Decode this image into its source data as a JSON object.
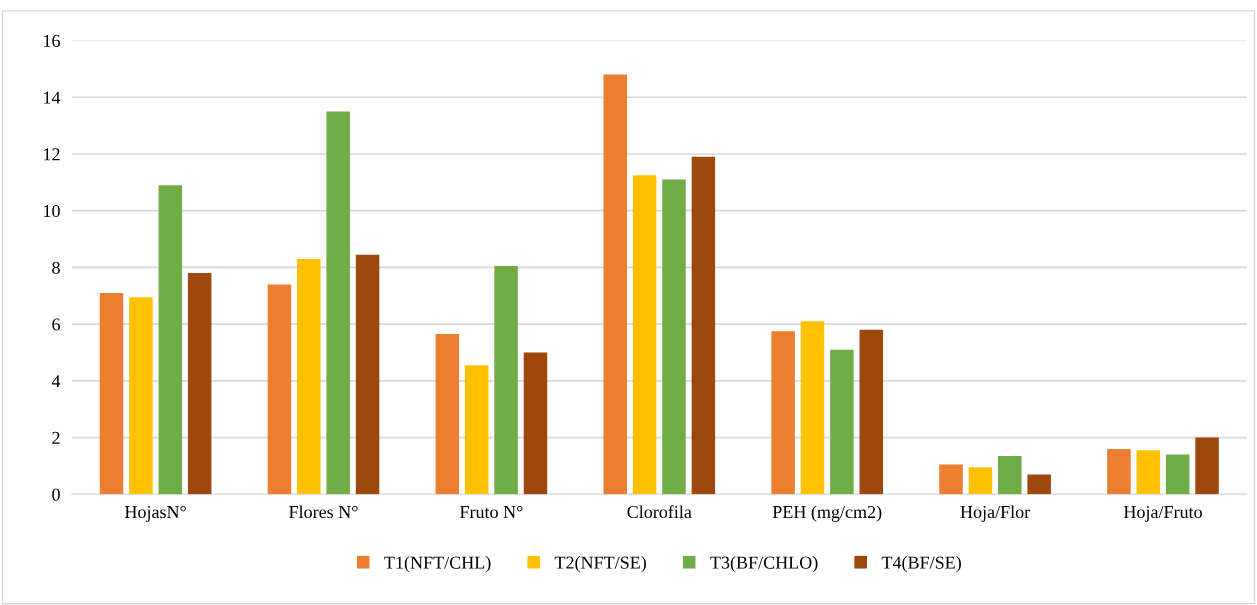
{
  "chart_data": {
    "type": "bar",
    "categories": [
      "HojasN°",
      "Flores N°",
      "Fruto N°",
      "Clorofila",
      "PEH (mg/cm2)",
      "Hoja/Flor",
      "Hoja/Fruto"
    ],
    "series": [
      {
        "name": "T1(NFT/CHL)",
        "color": "#ed7d31",
        "values": [
          7.1,
          7.4,
          5.65,
          14.8,
          5.75,
          1.05,
          1.6
        ]
      },
      {
        "name": "T2(NFT/SE)",
        "color": "#ffc000",
        "values": [
          6.95,
          8.3,
          4.55,
          11.25,
          6.1,
          0.95,
          1.55
        ]
      },
      {
        "name": "T3(BF/CHLO)",
        "color": "#70ad47",
        "values": [
          10.9,
          13.5,
          8.05,
          11.1,
          5.1,
          1.35,
          1.4
        ]
      },
      {
        "name": "T4(BF/SE)",
        "color": "#9e480e",
        "values": [
          7.8,
          8.45,
          5.0,
          11.9,
          5.8,
          0.7,
          2.0
        ]
      }
    ],
    "ylim": [
      0,
      16
    ],
    "yticks": [
      0,
      2,
      4,
      6,
      8,
      10,
      12,
      14,
      16
    ],
    "grid": "y",
    "legend": "bottom"
  }
}
